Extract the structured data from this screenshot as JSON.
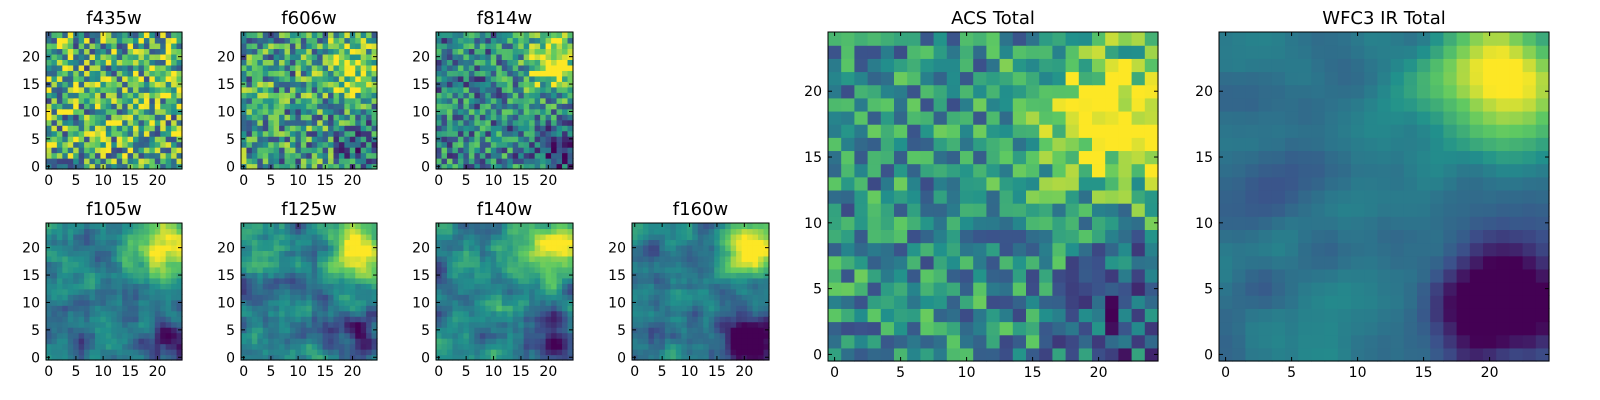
{
  "colormap": [
    "#440154",
    "#3b528b",
    "#21918c",
    "#5ec962",
    "#fde725"
  ],
  "chart_data": [
    {
      "type": "heatmap",
      "title": "f435w",
      "xticks": [
        0,
        5,
        10,
        15,
        20
      ],
      "yticks": [
        0,
        5,
        10,
        15,
        20
      ],
      "extent": [
        0,
        25
      ],
      "grid": false,
      "texture": 0.85,
      "smooth": 0,
      "blob": [
        20,
        19,
        0.05
      ],
      "dark": [],
      "base": 0.62
    },
    {
      "type": "heatmap",
      "title": "f606w",
      "xticks": [
        0,
        5,
        10,
        15,
        20
      ],
      "yticks": [
        0,
        5,
        10,
        15,
        20
      ],
      "extent": [
        0,
        25
      ],
      "grid": false,
      "texture": 0.75,
      "smooth": 0,
      "blob": [
        20,
        18,
        0.35
      ],
      "dark": [
        [
          22,
          3,
          0.25
        ]
      ],
      "base": 0.55
    },
    {
      "type": "heatmap",
      "title": "f814w",
      "xticks": [
        0,
        5,
        10,
        15,
        20
      ],
      "yticks": [
        0,
        5,
        10,
        15,
        20
      ],
      "extent": [
        0,
        25
      ],
      "grid": false,
      "texture": 0.65,
      "smooth": 0,
      "blob": [
        21,
        19,
        0.55
      ],
      "dark": [
        [
          22,
          3,
          0.35
        ]
      ],
      "base": 0.45
    },
    {
      "type": "heatmap",
      "title": "f105w",
      "xticks": [
        0,
        5,
        10,
        15,
        20
      ],
      "yticks": [
        0,
        5,
        10,
        15,
        20
      ],
      "extent": [
        0,
        25
      ],
      "grid": false,
      "texture": 0.35,
      "smooth": 1,
      "blob": [
        21,
        20,
        0.6
      ],
      "dark": [
        [
          22,
          4,
          0.35
        ]
      ],
      "base": 0.42
    },
    {
      "type": "heatmap",
      "title": "f125w",
      "xticks": [
        0,
        5,
        10,
        15,
        20
      ],
      "yticks": [
        0,
        5,
        10,
        15,
        20
      ],
      "extent": [
        0,
        25
      ],
      "grid": false,
      "texture": 0.4,
      "smooth": 1,
      "blob": [
        21,
        20,
        0.55
      ],
      "dark": [
        [
          21,
          4,
          0.35
        ]
      ],
      "base": 0.45
    },
    {
      "type": "heatmap",
      "title": "f140w",
      "xticks": [
        0,
        5,
        10,
        15,
        20
      ],
      "yticks": [
        0,
        5,
        10,
        15,
        20
      ],
      "extent": [
        0,
        25
      ],
      "grid": false,
      "texture": 0.35,
      "smooth": 1,
      "blob": [
        21,
        20,
        0.6
      ],
      "dark": [
        [
          21,
          4,
          0.45
        ]
      ],
      "base": 0.45
    },
    {
      "type": "heatmap",
      "title": "f160w",
      "xticks": [
        0,
        5,
        10,
        15,
        20
      ],
      "yticks": [
        0,
        5,
        10,
        15,
        20
      ],
      "extent": [
        0,
        25
      ],
      "grid": false,
      "texture": 0.3,
      "smooth": 1,
      "blob": [
        21,
        20,
        0.65
      ],
      "dark": [
        [
          21,
          3,
          0.6
        ]
      ],
      "base": 0.38
    },
    {
      "type": "heatmap",
      "title": "ACS Total",
      "xticks": [
        0,
        5,
        10,
        15,
        20
      ],
      "yticks": [
        0,
        5,
        10,
        15,
        20
      ],
      "extent": [
        0,
        25
      ],
      "grid": false,
      "texture": 0.55,
      "smooth": 0,
      "blob": [
        21,
        18,
        0.6
      ],
      "dark": [
        [
          22,
          3,
          0.3
        ]
      ],
      "base": 0.5
    },
    {
      "type": "heatmap",
      "title": "WFC3 IR Total",
      "xticks": [
        0,
        5,
        10,
        15,
        20
      ],
      "yticks": [
        0,
        5,
        10,
        15,
        20
      ],
      "extent": [
        0,
        25
      ],
      "grid": false,
      "texture": 0.12,
      "smooth": 2,
      "blob": [
        21,
        21,
        0.7
      ],
      "dark": [
        [
          21,
          4,
          0.65
        ]
      ],
      "base": 0.38
    }
  ]
}
